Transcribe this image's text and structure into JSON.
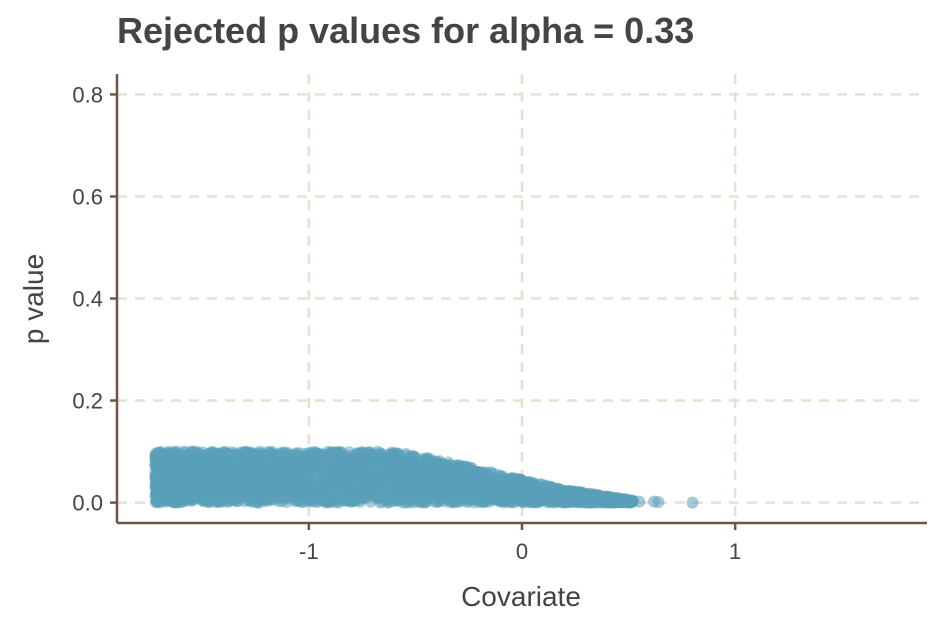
{
  "chart_data": {
    "type": "scatter",
    "title": "Rejected p values for alpha = 0.33",
    "xlabel": "Covariate",
    "ylabel": "p value",
    "xlim": [
      -1.9,
      1.9
    ],
    "ylim": [
      -0.04,
      0.84
    ],
    "x_ticks": [
      -1,
      0,
      1
    ],
    "x_tick_labels": [
      "-1",
      "0",
      "1"
    ],
    "y_ticks": [
      0.0,
      0.2,
      0.4,
      0.6,
      0.8
    ],
    "y_tick_labels": [
      "0.0",
      "0.2",
      "0.4",
      "0.6",
      "0.8"
    ],
    "grid": true,
    "colors": {
      "points": "#5a9fb9",
      "grid": "#ecdfd0",
      "axis": "#6b5744",
      "text": "#444444"
    },
    "series": [
      {
        "envelope": [
          {
            "x": -1.72,
            "ymax": 0.1
          },
          {
            "x": -0.6,
            "ymax": 0.1
          },
          {
            "x": -0.4,
            "ymax": 0.085
          },
          {
            "x": -0.2,
            "ymax": 0.065
          },
          {
            "x": 0.0,
            "ymax": 0.045
          },
          {
            "x": 0.2,
            "ymax": 0.025
          },
          {
            "x": 0.4,
            "ymax": 0.012
          },
          {
            "x": 0.52,
            "ymax": 0.004
          }
        ],
        "sample_points": [
          {
            "x": -1.7,
            "y": 0.095
          },
          {
            "x": -1.7,
            "y": 0.005
          },
          {
            "x": -1.55,
            "y": 0.1
          },
          {
            "x": -1.3,
            "y": 0.098
          },
          {
            "x": -1.0,
            "y": 0.097
          },
          {
            "x": -0.75,
            "y": 0.099
          },
          {
            "x": -0.6,
            "y": 0.09
          },
          {
            "x": -0.4,
            "y": 0.08
          },
          {
            "x": -0.2,
            "y": 0.06
          },
          {
            "x": 0.0,
            "y": 0.035
          },
          {
            "x": 0.15,
            "y": 0.02
          },
          {
            "x": 0.3,
            "y": 0.01
          },
          {
            "x": 0.4,
            "y": 0.006
          },
          {
            "x": 0.47,
            "y": 0.003
          },
          {
            "x": 0.55,
            "y": 0.002
          },
          {
            "x": 0.62,
            "y": 0.002
          },
          {
            "x": 0.64,
            "y": 0.001
          },
          {
            "x": 0.8,
            "y": 0.0
          }
        ]
      }
    ]
  }
}
